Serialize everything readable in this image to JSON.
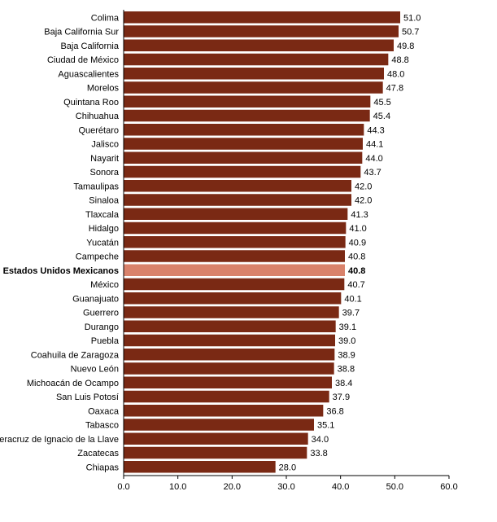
{
  "chart_data": {
    "type": "bar",
    "orientation": "horizontal",
    "categories": [
      "Colima",
      "Baja California Sur",
      "Baja California",
      "Ciudad de México",
      "Aguascalientes",
      "Morelos",
      "Quintana Roo",
      "Chihuahua",
      "Querétaro",
      "Jalisco",
      "Nayarit",
      "Sonora",
      "Tamaulipas",
      "Sinaloa",
      "Tlaxcala",
      "Hidalgo",
      "Yucatán",
      "Campeche",
      "Estados Unidos Mexicanos",
      "México",
      "Guanajuato",
      "Guerrero",
      "Durango",
      "Puebla",
      "Coahuila de Zaragoza",
      "Nuevo León",
      "Michoacán de Ocampo",
      "San Luis Potosí",
      "Oaxaca",
      "Tabasco",
      "Veracruz de Ignacio de la Llave",
      "Zacatecas",
      "Chiapas"
    ],
    "values": [
      51.0,
      50.7,
      49.8,
      48.8,
      48.0,
      47.8,
      45.5,
      45.4,
      44.3,
      44.1,
      44.0,
      43.7,
      42.0,
      42.0,
      41.3,
      41.0,
      40.9,
      40.8,
      40.8,
      40.7,
      40.1,
      39.7,
      39.1,
      39.0,
      38.9,
      38.8,
      38.4,
      37.9,
      36.8,
      35.1,
      34.0,
      33.8,
      28.0
    ],
    "value_labels": [
      "51.0",
      "50.7",
      "49.8",
      "48.8",
      "48.0",
      "47.8",
      "45.5",
      "45.4",
      "44.3",
      "44.1",
      "44.0",
      "43.7",
      "42.0",
      "42.0",
      "41.3",
      "41.0",
      "40.9",
      "40.8",
      "40.8",
      "40.7",
      "40.1",
      "39.7",
      "39.1",
      "39.0",
      "38.9",
      "38.8",
      "38.4",
      "37.9",
      "36.8",
      "35.1",
      "34.0",
      "33.8",
      "28.0"
    ],
    "highlight": "Estados Unidos Mexicanos",
    "xlim": [
      0,
      60
    ],
    "x_ticks": [
      "0.0",
      "10.0",
      "20.0",
      "30.0",
      "40.0",
      "50.0",
      "60.0"
    ],
    "x_tick_values": [
      0,
      10,
      20,
      30,
      40,
      50,
      60
    ],
    "grid": false,
    "colors": {
      "bar": "#7a2914",
      "highlight": "#d9826b",
      "axis": "#000000"
    }
  }
}
